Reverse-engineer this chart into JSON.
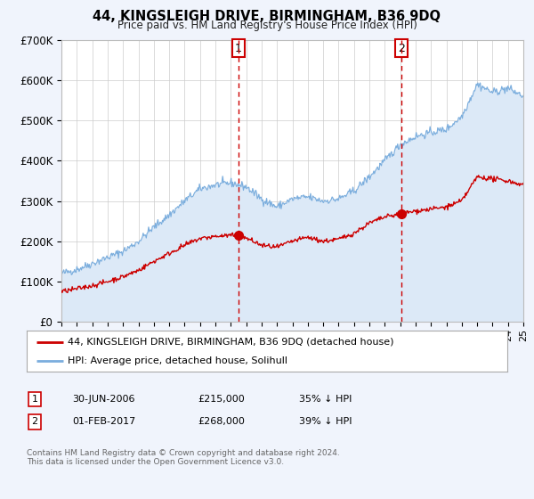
{
  "title": "44, KINGSLEIGH DRIVE, BIRMINGHAM, B36 9DQ",
  "subtitle": "Price paid vs. HM Land Registry's House Price Index (HPI)",
  "bg_color": "#f0f4fc",
  "plot_bg_color": "#ffffff",
  "hpi_fill_color": "#dce9f7",
  "red_line_color": "#cc0000",
  "blue_line_color": "#7aaddd",
  "marker1_date": 2006.5,
  "marker2_date": 2017.08,
  "marker1_red_y": 215000,
  "marker2_red_y": 268000,
  "vline1_x": 2006.5,
  "vline2_x": 2017.08,
  "xmin": 1995,
  "xmax": 2025,
  "ymin": 0,
  "ymax": 700000,
  "yticks": [
    0,
    100000,
    200000,
    300000,
    400000,
    500000,
    600000,
    700000
  ],
  "ytick_labels": [
    "£0",
    "£100K",
    "£200K",
    "£300K",
    "£400K",
    "£500K",
    "£600K",
    "£700K"
  ],
  "legend_entry1": "44, KINGSLEIGH DRIVE, BIRMINGHAM, B36 9DQ (detached house)",
  "legend_entry2": "HPI: Average price, detached house, Solihull",
  "table_row1": [
    "1",
    "30-JUN-2006",
    "£215,000",
    "35% ↓ HPI"
  ],
  "table_row2": [
    "2",
    "01-FEB-2017",
    "£268,000",
    "39% ↓ HPI"
  ],
  "footer_line1": "Contains HM Land Registry data © Crown copyright and database right 2024.",
  "footer_line2": "This data is licensed under the Open Government Licence v3.0."
}
